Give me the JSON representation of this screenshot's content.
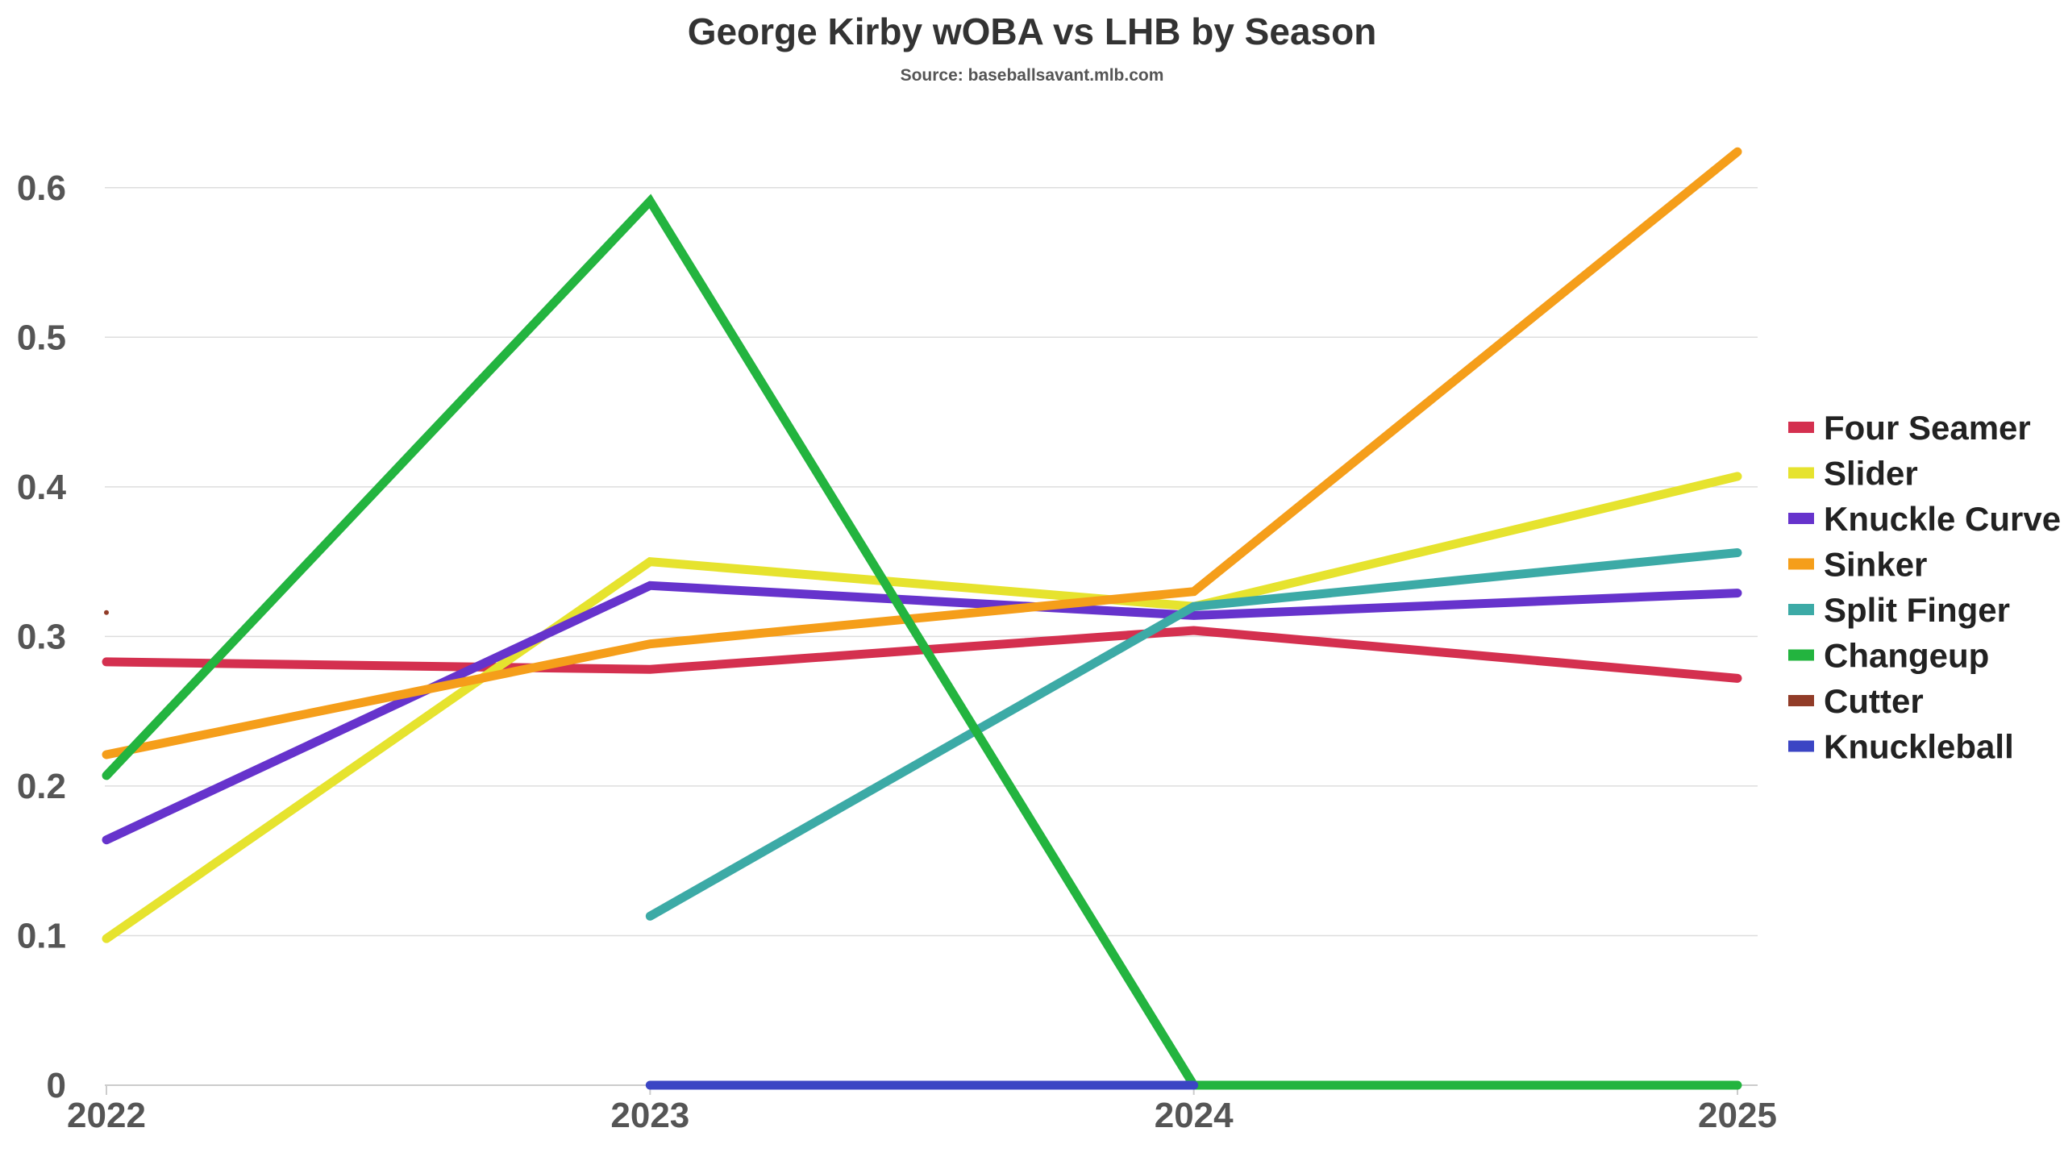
{
  "chart_data": {
    "type": "line",
    "title": "George Kirby wOBA vs LHB by Season",
    "subtitle": "Source: baseballsavant.mlb.com",
    "xlabel": "",
    "ylabel": "",
    "x": [
      "2022",
      "2023",
      "2024",
      "2025"
    ],
    "ylim": [
      0,
      0.65
    ],
    "yticks": [
      0,
      0.1,
      0.2,
      0.3,
      0.4,
      0.5,
      0.6
    ],
    "ytick_labels": [
      "0",
      "0.1",
      "0.2",
      "0.3",
      "0.4",
      "0.5",
      "0.6"
    ],
    "grid": true,
    "legend_position": "right",
    "series": [
      {
        "name": "Four Seamer",
        "color": "#d4304f",
        "values": [
          0.283,
          0.278,
          0.304,
          0.272
        ]
      },
      {
        "name": "Slider",
        "color": "#e6e32e",
        "values": [
          0.098,
          0.35,
          0.32,
          0.407
        ]
      },
      {
        "name": "Knuckle Curve",
        "color": "#6633cc",
        "values": [
          0.164,
          0.334,
          0.314,
          0.329
        ]
      },
      {
        "name": "Sinker",
        "color": "#f59e1a",
        "values": [
          0.221,
          0.295,
          0.33,
          0.624
        ]
      },
      {
        "name": "Split Finger",
        "color": "#3caaa6",
        "values": [
          null,
          0.113,
          0.32,
          0.356
        ]
      },
      {
        "name": "Changeup",
        "color": "#23b43f",
        "values": [
          0.207,
          0.591,
          0.0,
          0.0
        ]
      },
      {
        "name": "Cutter",
        "color": "#913c28",
        "values": [
          0.316,
          null,
          null,
          null
        ]
      },
      {
        "name": "Knuckleball",
        "color": "#3b45c4",
        "values": [
          null,
          0.0,
          0.0,
          null
        ]
      }
    ]
  }
}
